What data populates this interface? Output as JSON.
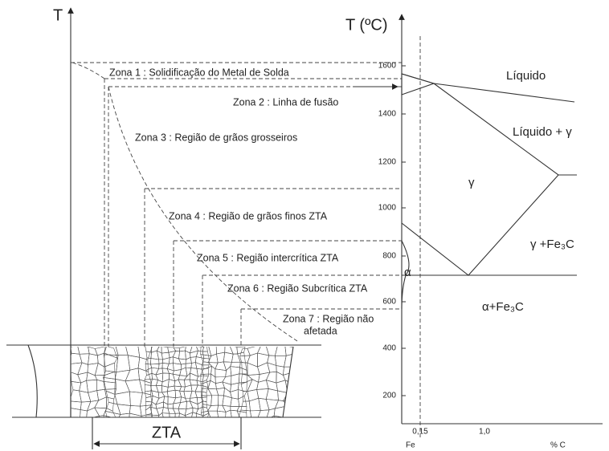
{
  "left": {
    "axis_label": "T",
    "zones": [
      "Zona 1 : Solidificação do Metal de Solda",
      "Zona 2 : Linha de fusão",
      "Zona 3 : Região de grãos grosseiros",
      "Zona 4 : Região de grãos finos ZTA",
      "Zona 5 : Região intercrítica ZTA",
      "Zona 6 : Região Subcrítica ZTA",
      [
        "Zona 7 : Região não",
        "afetada"
      ]
    ],
    "zta_label": "ZTA"
  },
  "right": {
    "axis_label": "T (ºC)",
    "y_ticks": [
      "1600",
      "1400",
      "1200",
      "1000",
      "800",
      "600",
      "400",
      "200"
    ],
    "x_ticks": [
      "0,15",
      "1,0"
    ],
    "x_start": "Fe",
    "x_label": "% C",
    "regions": [
      "Líquido",
      "Líquido + γ",
      "γ",
      "γ +Fe₃C",
      "α+Fe₃C",
      "α"
    ]
  }
}
